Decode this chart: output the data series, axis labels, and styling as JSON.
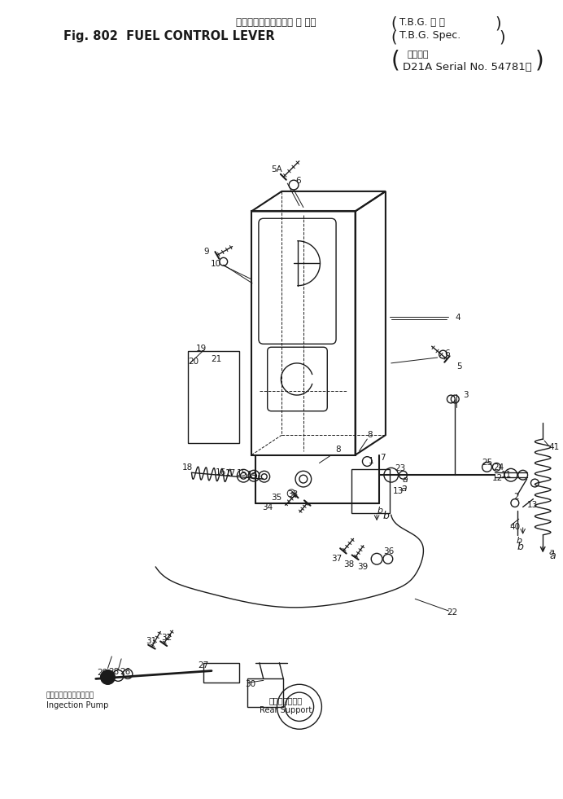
{
  "bg_color": "#ffffff",
  "line_color": "#1a1a1a",
  "figsize": [
    6.92,
    9.81
  ],
  "dpi": 100,
  "title_line1_left": "フュエルコントロール レ バー",
  "title_line1_right": "T.B.G. 仕 様",
  "title_line2_left": "Fig. 802  FUEL CONTROL LEVER",
  "title_line2_right": "T.B.G. Spec.",
  "serial_label": "適用号機",
  "serial_value": "D21A Serial No. 54781～",
  "label_inj_jp": "インジェクションポンプ",
  "label_inj_en": "Ingection Pump",
  "label_rear_jp": "リアーサポート",
  "label_rear_en": "Rear Support"
}
